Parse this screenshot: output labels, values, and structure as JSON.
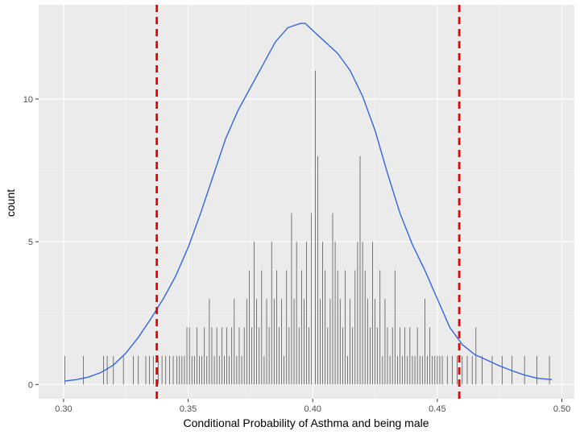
{
  "chart_data": {
    "type": "histogram-density",
    "xlabel": "Conditional Probability of Asthma and being male",
    "ylabel": "count",
    "xlim": [
      0.29,
      0.505
    ],
    "ylim": [
      -0.5,
      13.3
    ],
    "x_ticks": [
      {
        "value": 0.3,
        "label": "0.30"
      },
      {
        "value": 0.35,
        "label": "0.35"
      },
      {
        "value": 0.4,
        "label": "0.40"
      },
      {
        "value": 0.45,
        "label": "0.45"
      },
      {
        "value": 0.5,
        "label": "0.50"
      }
    ],
    "y_ticks": [
      {
        "value": 0,
        "label": "0"
      },
      {
        "value": 5,
        "label": "5"
      },
      {
        "value": 10,
        "label": "10"
      }
    ],
    "grid": true,
    "reference_lines": [
      {
        "x": 0.3374,
        "color": "#ee0000",
        "style": "dashed"
      },
      {
        "x": 0.4588,
        "color": "#ee0000",
        "style": "dashed"
      }
    ],
    "density_curve": {
      "color": "#3366dd",
      "x": [
        0.3005,
        0.305,
        0.31,
        0.315,
        0.32,
        0.325,
        0.33,
        0.335,
        0.34,
        0.345,
        0.35,
        0.355,
        0.36,
        0.365,
        0.37,
        0.375,
        0.38,
        0.385,
        0.39,
        0.395,
        0.397,
        0.4,
        0.405,
        0.41,
        0.415,
        0.42,
        0.425,
        0.43,
        0.435,
        0.44,
        0.445,
        0.45,
        0.455,
        0.46,
        0.465,
        0.47,
        0.475,
        0.48,
        0.485,
        0.49,
        0.496
      ],
      "y": [
        0.12,
        0.17,
        0.26,
        0.42,
        0.68,
        1.1,
        1.65,
        2.3,
        3.0,
        3.8,
        4.8,
        6.0,
        7.3,
        8.6,
        9.6,
        10.4,
        11.2,
        12.0,
        12.5,
        12.65,
        12.65,
        12.4,
        12.0,
        11.6,
        11.0,
        10.1,
        8.9,
        7.4,
        6.0,
        4.9,
        4.0,
        3.0,
        2.0,
        1.4,
        1.05,
        0.85,
        0.65,
        0.48,
        0.33,
        0.22,
        0.17
      ]
    },
    "bars": [
      {
        "x": 0.3005,
        "count": 1
      },
      {
        "x": 0.308,
        "count": 1
      },
      {
        "x": 0.316,
        "count": 1
      },
      {
        "x": 0.3175,
        "count": 1
      },
      {
        "x": 0.32,
        "count": 1
      },
      {
        "x": 0.324,
        "count": 1
      },
      {
        "x": 0.328,
        "count": 1
      },
      {
        "x": 0.33,
        "count": 1
      },
      {
        "x": 0.333,
        "count": 1
      },
      {
        "x": 0.3345,
        "count": 1
      },
      {
        "x": 0.336,
        "count": 1
      },
      {
        "x": 0.338,
        "count": 1
      },
      {
        "x": 0.3395,
        "count": 1
      },
      {
        "x": 0.341,
        "count": 1
      },
      {
        "x": 0.3425,
        "count": 1
      },
      {
        "x": 0.344,
        "count": 1
      },
      {
        "x": 0.3455,
        "count": 1
      },
      {
        "x": 0.3465,
        "count": 1
      },
      {
        "x": 0.3475,
        "count": 1
      },
      {
        "x": 0.3485,
        "count": 1
      },
      {
        "x": 0.3495,
        "count": 2
      },
      {
        "x": 0.3505,
        "count": 2
      },
      {
        "x": 0.3515,
        "count": 1
      },
      {
        "x": 0.3525,
        "count": 1
      },
      {
        "x": 0.3535,
        "count": 2
      },
      {
        "x": 0.3545,
        "count": 1
      },
      {
        "x": 0.3555,
        "count": 1
      },
      {
        "x": 0.3565,
        "count": 2
      },
      {
        "x": 0.3575,
        "count": 1
      },
      {
        "x": 0.3585,
        "count": 3
      },
      {
        "x": 0.3595,
        "count": 2
      },
      {
        "x": 0.3605,
        "count": 1
      },
      {
        "x": 0.3615,
        "count": 2
      },
      {
        "x": 0.3625,
        "count": 1
      },
      {
        "x": 0.3635,
        "count": 2
      },
      {
        "x": 0.3645,
        "count": 1
      },
      {
        "x": 0.3655,
        "count": 2
      },
      {
        "x": 0.3665,
        "count": 1
      },
      {
        "x": 0.3675,
        "count": 2
      },
      {
        "x": 0.3685,
        "count": 3
      },
      {
        "x": 0.3695,
        "count": 1
      },
      {
        "x": 0.3705,
        "count": 2
      },
      {
        "x": 0.3715,
        "count": 1
      },
      {
        "x": 0.3725,
        "count": 2
      },
      {
        "x": 0.3735,
        "count": 3
      },
      {
        "x": 0.3745,
        "count": 4
      },
      {
        "x": 0.3755,
        "count": 2
      },
      {
        "x": 0.3765,
        "count": 5
      },
      {
        "x": 0.3775,
        "count": 3
      },
      {
        "x": 0.3785,
        "count": 2
      },
      {
        "x": 0.3795,
        "count": 4
      },
      {
        "x": 0.3805,
        "count": 1
      },
      {
        "x": 0.3815,
        "count": 3
      },
      {
        "x": 0.3825,
        "count": 2
      },
      {
        "x": 0.3835,
        "count": 5
      },
      {
        "x": 0.3845,
        "count": 3
      },
      {
        "x": 0.3855,
        "count": 4
      },
      {
        "x": 0.3865,
        "count": 2
      },
      {
        "x": 0.3875,
        "count": 3
      },
      {
        "x": 0.3885,
        "count": 1
      },
      {
        "x": 0.3895,
        "count": 4
      },
      {
        "x": 0.3905,
        "count": 2
      },
      {
        "x": 0.3915,
        "count": 6
      },
      {
        "x": 0.3925,
        "count": 3
      },
      {
        "x": 0.3935,
        "count": 5
      },
      {
        "x": 0.3945,
        "count": 2
      },
      {
        "x": 0.3955,
        "count": 4
      },
      {
        "x": 0.3965,
        "count": 3
      },
      {
        "x": 0.3975,
        "count": 5
      },
      {
        "x": 0.3985,
        "count": 2
      },
      {
        "x": 0.3995,
        "count": 6
      },
      {
        "x": 0.401,
        "count": 11
      },
      {
        "x": 0.402,
        "count": 8
      },
      {
        "x": 0.403,
        "count": 3
      },
      {
        "x": 0.404,
        "count": 5
      },
      {
        "x": 0.405,
        "count": 4
      },
      {
        "x": 0.406,
        "count": 2
      },
      {
        "x": 0.407,
        "count": 3
      },
      {
        "x": 0.408,
        "count": 6
      },
      {
        "x": 0.409,
        "count": 5
      },
      {
        "x": 0.41,
        "count": 4
      },
      {
        "x": 0.411,
        "count": 3
      },
      {
        "x": 0.412,
        "count": 2
      },
      {
        "x": 0.413,
        "count": 4
      },
      {
        "x": 0.414,
        "count": 1
      },
      {
        "x": 0.415,
        "count": 3
      },
      {
        "x": 0.416,
        "count": 2
      },
      {
        "x": 0.417,
        "count": 4
      },
      {
        "x": 0.418,
        "count": 5
      },
      {
        "x": 0.419,
        "count": 8
      },
      {
        "x": 0.42,
        "count": 5
      },
      {
        "x": 0.421,
        "count": 4
      },
      {
        "x": 0.422,
        "count": 3
      },
      {
        "x": 0.423,
        "count": 2
      },
      {
        "x": 0.424,
        "count": 5
      },
      {
        "x": 0.425,
        "count": 3
      },
      {
        "x": 0.426,
        "count": 2
      },
      {
        "x": 0.427,
        "count": 4
      },
      {
        "x": 0.428,
        "count": 1
      },
      {
        "x": 0.429,
        "count": 3
      },
      {
        "x": 0.43,
        "count": 2
      },
      {
        "x": 0.431,
        "count": 1
      },
      {
        "x": 0.432,
        "count": 2
      },
      {
        "x": 0.433,
        "count": 4
      },
      {
        "x": 0.434,
        "count": 1
      },
      {
        "x": 0.435,
        "count": 2
      },
      {
        "x": 0.436,
        "count": 1
      },
      {
        "x": 0.437,
        "count": 2
      },
      {
        "x": 0.438,
        "count": 1
      },
      {
        "x": 0.439,
        "count": 2
      },
      {
        "x": 0.44,
        "count": 1
      },
      {
        "x": 0.441,
        "count": 1
      },
      {
        "x": 0.442,
        "count": 2
      },
      {
        "x": 0.443,
        "count": 1
      },
      {
        "x": 0.444,
        "count": 1
      },
      {
        "x": 0.445,
        "count": 3
      },
      {
        "x": 0.446,
        "count": 1
      },
      {
        "x": 0.447,
        "count": 2
      },
      {
        "x": 0.448,
        "count": 1
      },
      {
        "x": 0.449,
        "count": 1
      },
      {
        "x": 0.45,
        "count": 1
      },
      {
        "x": 0.451,
        "count": 1
      },
      {
        "x": 0.452,
        "count": 1
      },
      {
        "x": 0.454,
        "count": 1
      },
      {
        "x": 0.456,
        "count": 1
      },
      {
        "x": 0.458,
        "count": 1
      },
      {
        "x": 0.46,
        "count": 1
      },
      {
        "x": 0.462,
        "count": 1
      },
      {
        "x": 0.464,
        "count": 1
      },
      {
        "x": 0.4655,
        "count": 2
      },
      {
        "x": 0.468,
        "count": 1
      },
      {
        "x": 0.472,
        "count": 1
      },
      {
        "x": 0.476,
        "count": 1
      },
      {
        "x": 0.48,
        "count": 1
      },
      {
        "x": 0.485,
        "count": 1
      },
      {
        "x": 0.49,
        "count": 1
      },
      {
        "x": 0.495,
        "count": 1
      }
    ],
    "bar_color": "#444444"
  }
}
